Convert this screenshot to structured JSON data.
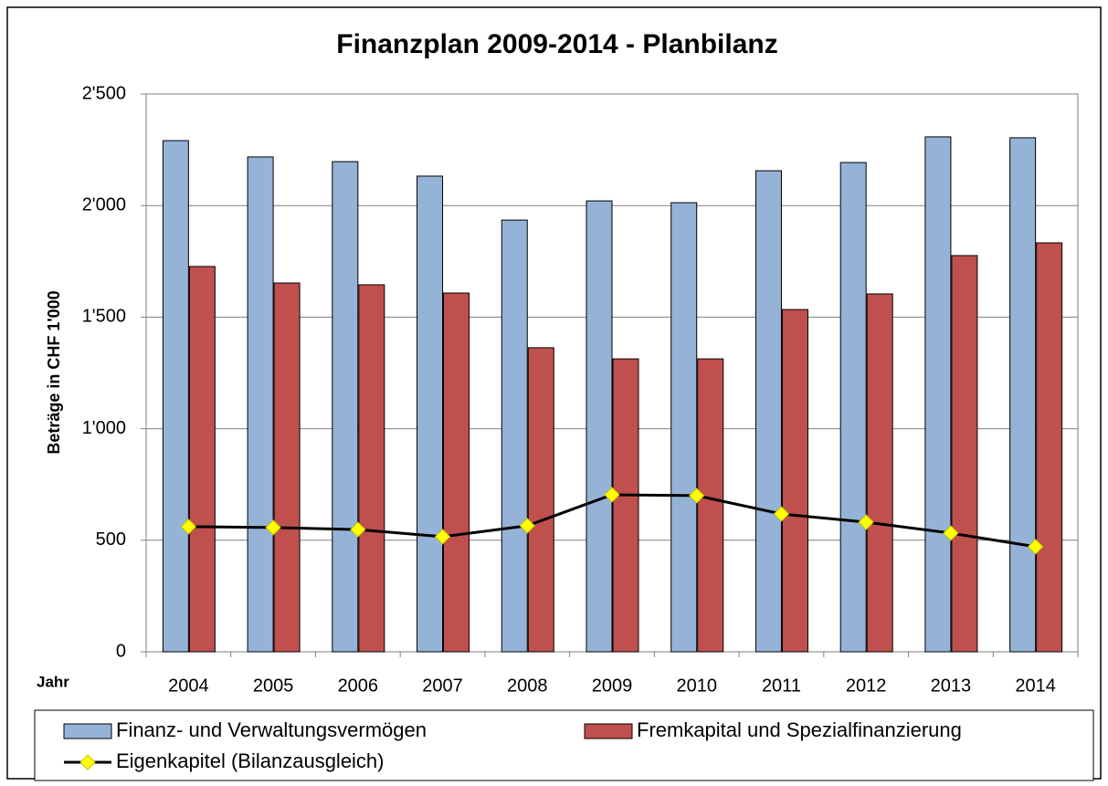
{
  "chart_data": {
    "type": "bar",
    "title": "Finanzplan 2009-2014  - Planbilanz",
    "x_label": "Jahr",
    "y_label": "Beträge in CHF 1'000",
    "categories": [
      "2004",
      "2005",
      "2006",
      "2007",
      "2008",
      "2009",
      "2010",
      "2011",
      "2012",
      "2013",
      "2014"
    ],
    "series": [
      {
        "name": "Finanz- und Verwaltungsvermögen",
        "type": "bar",
        "color": "#95b3d7",
        "values": [
          2291,
          2218,
          2197,
          2132,
          1935,
          2021,
          2013,
          2156,
          2193,
          2308,
          2304
        ]
      },
      {
        "name": "Fremkapital und Spezialfinanzierung",
        "type": "bar",
        "color": "#c0504d",
        "values": [
          1727,
          1653,
          1645,
          1608,
          1363,
          1313,
          1313,
          1534,
          1604,
          1776,
          1833
        ]
      },
      {
        "name": "Eigenkapitel (Bilanzausgleich)",
        "type": "line",
        "color": "#000000",
        "marker_color": "#ffff00",
        "values": [
          561,
          557,
          548,
          516,
          565,
          704,
          700,
          618,
          581,
          532,
          471
        ]
      }
    ],
    "ylim": [
      0,
      2500
    ],
    "yticks": [
      0,
      500,
      {
        "value": 1000,
        "label": "1'000"
      },
      {
        "value": 1500,
        "label": "1'500"
      },
      {
        "value": 2000,
        "label": "2'000"
      },
      {
        "value": 2500,
        "label": "2'500"
      }
    ],
    "grid": true,
    "legend": "bottom"
  }
}
